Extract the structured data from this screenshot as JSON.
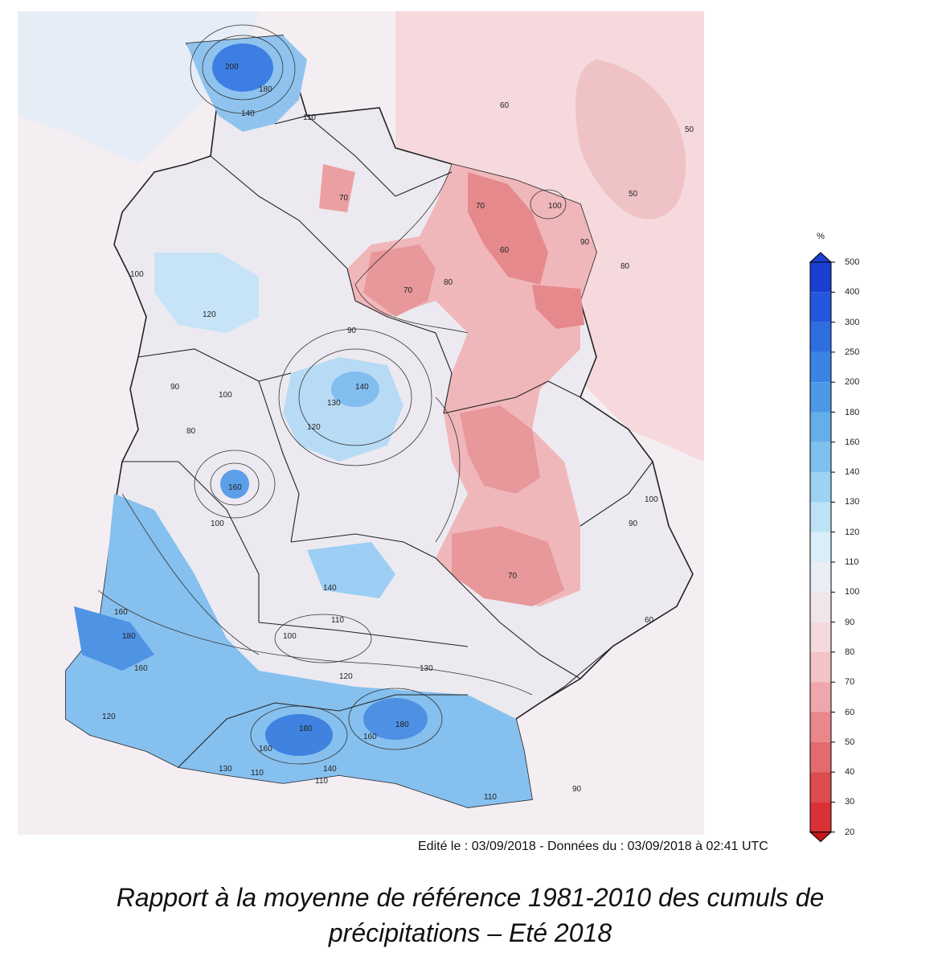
{
  "legend": {
    "unit": "%",
    "ticks": [
      "500",
      "400",
      "300",
      "250",
      "200",
      "180",
      "160",
      "140",
      "130",
      "120",
      "110",
      "100",
      "90",
      "80",
      "70",
      "60",
      "50",
      "40",
      "30",
      "20"
    ],
    "colors": [
      "#1a3fd1",
      "#2457dd",
      "#2e6fe0",
      "#3a84e3",
      "#4d98e6",
      "#64aeea",
      "#7fc1ee",
      "#9dd2f2",
      "#bde2f6",
      "#d9eef9",
      "#e9eef4",
      "#efe6ea",
      "#f6d9dc",
      "#f3c3c6",
      "#eea7aa",
      "#e8888b",
      "#e36a6d",
      "#de4c50",
      "#d93135",
      "#c4161b"
    ]
  },
  "edit_line": "Edité le : 03/09/2018 - Données du : 03/09/2018 à 02:41 UTC",
  "caption": {
    "line1": "Rapport à la moyenne de référence 1981-2010 des cumuls de",
    "line2": "précipitations – Eté 2018"
  },
  "isolines": [
    "200",
    "180",
    "160",
    "140",
    "130",
    "120",
    "110",
    "100",
    "90",
    "80",
    "70",
    "60",
    "50"
  ]
}
